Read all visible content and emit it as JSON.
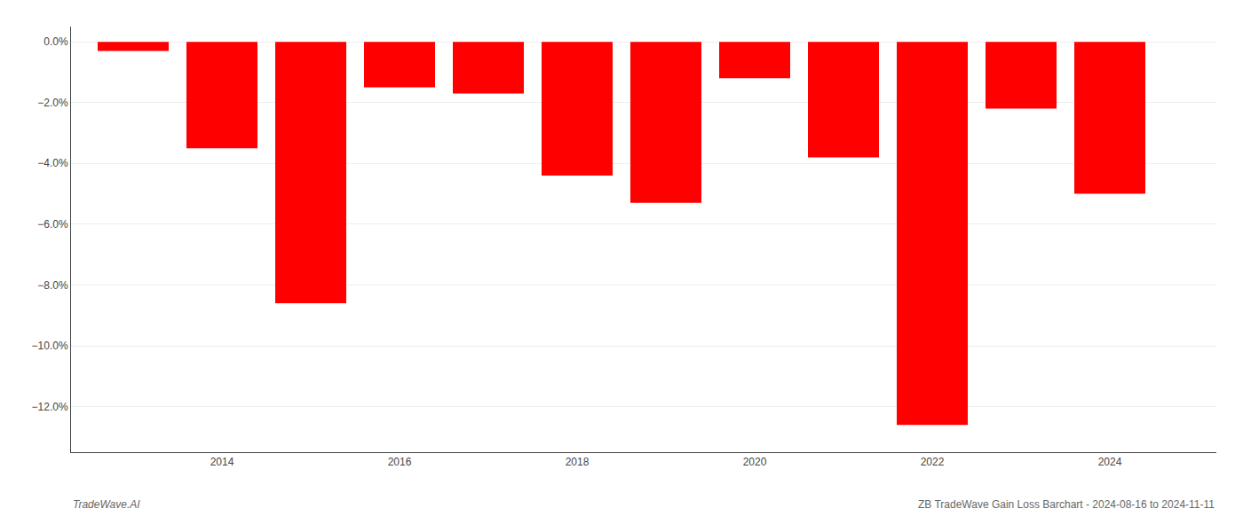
{
  "chart_data": {
    "type": "bar",
    "x": [
      2013,
      2014,
      2015,
      2016,
      2017,
      2018,
      2019,
      2020,
      2021,
      2022,
      2023,
      2024
    ],
    "values": [
      -0.3,
      -3.5,
      -8.6,
      -1.5,
      -1.7,
      -4.4,
      -5.3,
      -1.2,
      -3.8,
      -12.6,
      -2.2,
      -5.0
    ],
    "color": "#ff0000",
    "xlim": [
      2012.3,
      2025.2
    ],
    "xticks": [
      2014,
      2016,
      2018,
      2020,
      2022,
      2024
    ],
    "ylim": [
      -13.5,
      0.5
    ],
    "yticks": [
      {
        "value": 0.0,
        "label": "0.0%"
      },
      {
        "value": -2.0,
        "label": "−2.0%"
      },
      {
        "value": -4.0,
        "label": "−4.0%"
      },
      {
        "value": -6.0,
        "label": "−6.0%"
      },
      {
        "value": -8.0,
        "label": "−8.0%"
      },
      {
        "value": -10.0,
        "label": "−10.0%"
      },
      {
        "value": -12.0,
        "label": "−12.0%"
      }
    ],
    "grid": true,
    "annotations": [
      "TradeWave.AI",
      "ZB TradeWave Gain Loss Barchart - 2024-08-16 to 2024-11-11"
    ]
  }
}
